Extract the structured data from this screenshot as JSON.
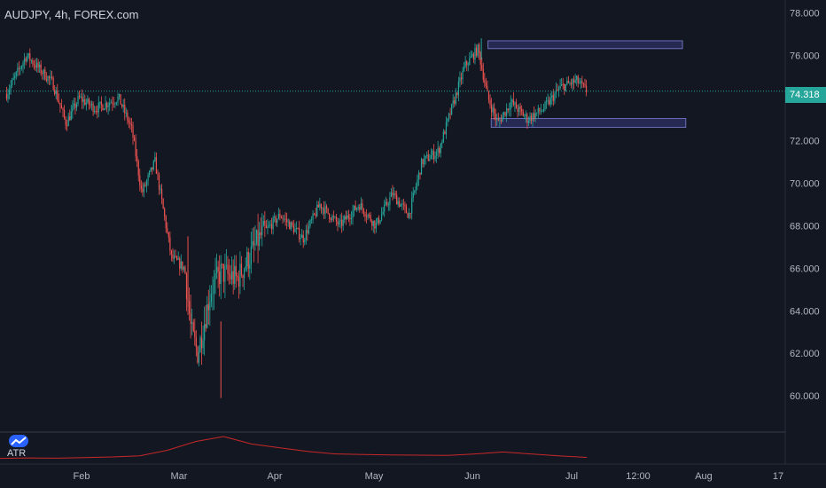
{
  "header": {
    "symbol_title": "AUDJPY, 4h, FOREX.com"
  },
  "price_tag": "74.318",
  "indicator": {
    "label": "ATR",
    "icon": "chart-logo-icon"
  },
  "colors": {
    "background": "#131722",
    "up": "#26a69a",
    "down": "#ef5350",
    "zone_fill": "#2a2e5a",
    "zone_stroke": "#6b6fb8",
    "current_line": "#26a69a",
    "atr_line": "#c62828"
  },
  "chart_data": {
    "type": "candlestick",
    "title": "AUDJPY, 4h, FOREX.com",
    "y_axis": {
      "ticks": [
        "78.000",
        "76.000",
        "74.000",
        "72.000",
        "70.000",
        "68.000",
        "66.000",
        "64.000",
        "62.000",
        "60.000"
      ],
      "ylim": [
        58.3,
        78.6
      ],
      "side": "right"
    },
    "x_axis": {
      "ticks": [
        "Feb",
        "Mar",
        "Apr",
        "May",
        "Jun",
        "Jul",
        "12:00",
        "Aug",
        "17"
      ]
    },
    "current_price": 74.318,
    "price_path": {
      "x": [
        "Jan 14",
        "Jan 20",
        "Jan 28",
        "Feb 01",
        "Feb 05",
        "Feb 10",
        "Feb 17",
        "Feb 21",
        "Feb 24",
        "Feb 28",
        "Mar 04",
        "Mar 08",
        "Mar 10",
        "Mar 12",
        "Mar 16",
        "Mar 19",
        "Mar 24",
        "Mar 31",
        "Apr 06",
        "Apr 13",
        "Apr 18",
        "Apr 24",
        "Apr 30",
        "May 05",
        "May 10",
        "May 15",
        "May 19",
        "May 24",
        "May 28",
        "Jun 01",
        "Jun 05",
        "Jun 08",
        "Jun 11",
        "Jun 15",
        "Jun 20",
        "Jun 25",
        "Jun 30",
        "Jul 05",
        "Jul 08"
      ],
      "close": [
        74.2,
        76.0,
        74.7,
        72.8,
        74.0,
        73.5,
        74.0,
        72.5,
        69.5,
        71.0,
        66.5,
        66.0,
        63.0,
        62.0,
        65.0,
        65.8,
        65.5,
        67.5,
        68.5,
        67.4,
        69.0,
        68.0,
        69.0,
        68.0,
        69.5,
        68.5,
        71.0,
        71.5,
        73.5,
        75.5,
        76.3,
        74.0,
        72.8,
        73.8,
        73.0,
        73.5,
        74.5,
        74.8,
        74.3
      ],
      "range_high": 76.8,
      "range_low": 59.9
    },
    "zones": [
      {
        "name": "",
        "from": "Jun 08",
        "to": "Aug 06",
        "low": 76.4,
        "high": 76.6
      },
      {
        "name": "",
        "from": "Jun 09",
        "to": "Aug 07",
        "low": 72.7,
        "high": 72.95
      }
    ],
    "indicator": {
      "name": "ATR",
      "values": [
        0.12,
        0.14,
        0.13,
        0.15,
        0.18,
        0.22,
        0.45,
        0.8,
        1.0,
        0.7,
        0.55,
        0.4,
        0.3,
        0.28,
        0.26,
        0.25,
        0.24,
        0.3,
        0.38,
        0.3,
        0.22,
        0.16
      ]
    }
  }
}
